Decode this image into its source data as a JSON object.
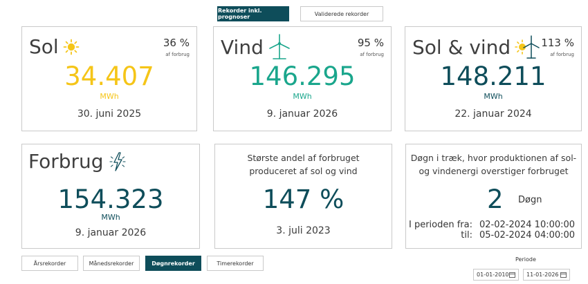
{
  "top_tabs": {
    "forecast_label": "Rekorder inkl. prognoser",
    "validated_label": "Validerede rekorder"
  },
  "sol": {
    "title": "Sol",
    "pct": "36 %",
    "pct_sub": "af forbrug",
    "value": "34.407",
    "unit": "MWh",
    "date": "30. juni 2025"
  },
  "vind": {
    "title": "Vind",
    "pct": "95 %",
    "pct_sub": "af forbrug",
    "value": "146.295",
    "unit": "MWh",
    "date": "9. januar 2026"
  },
  "solvind": {
    "title": "Sol & vind",
    "pct": "113 %",
    "pct_sub": "af forbrug",
    "value": "148.211",
    "unit": "MWh",
    "date": "22. januar 2024"
  },
  "forbrug": {
    "title": "Forbrug",
    "value": "154.323",
    "unit": "MWh",
    "date": "9. januar 2026"
  },
  "andel": {
    "line1": "Største andel af forbruget",
    "line2": "produceret af sol og vind",
    "value": "147 %",
    "date": "3. juli 2023"
  },
  "doegn": {
    "line1": "Døgn i træk, hvor produktionen af sol-",
    "line2": "og vindenergi overstiger forbruget",
    "value": "2",
    "unit": "Døgn",
    "from_label": "I perioden fra:",
    "from_value": "02-02-2024 10:00:00",
    "to_label": "til:",
    "to_value": "05-02-2024 04:00:00"
  },
  "bottom_tabs": {
    "year": "Årsrekorder",
    "month": "Månedsrekorder",
    "day": "Døgnrekorder",
    "hour": "Timerekorder"
  },
  "period": {
    "label": "Periode",
    "from": "01-01-2010",
    "to": "11-01-2026"
  },
  "colors": {
    "sol": "#f5c518",
    "vind": "#1aa68c",
    "dark": "#0e4d5a"
  },
  "icons": {
    "sol": "sun-icon",
    "vind": "wind-turbine-icon",
    "forbrug": "lightning-icon",
    "calendar": "calendar-icon"
  }
}
